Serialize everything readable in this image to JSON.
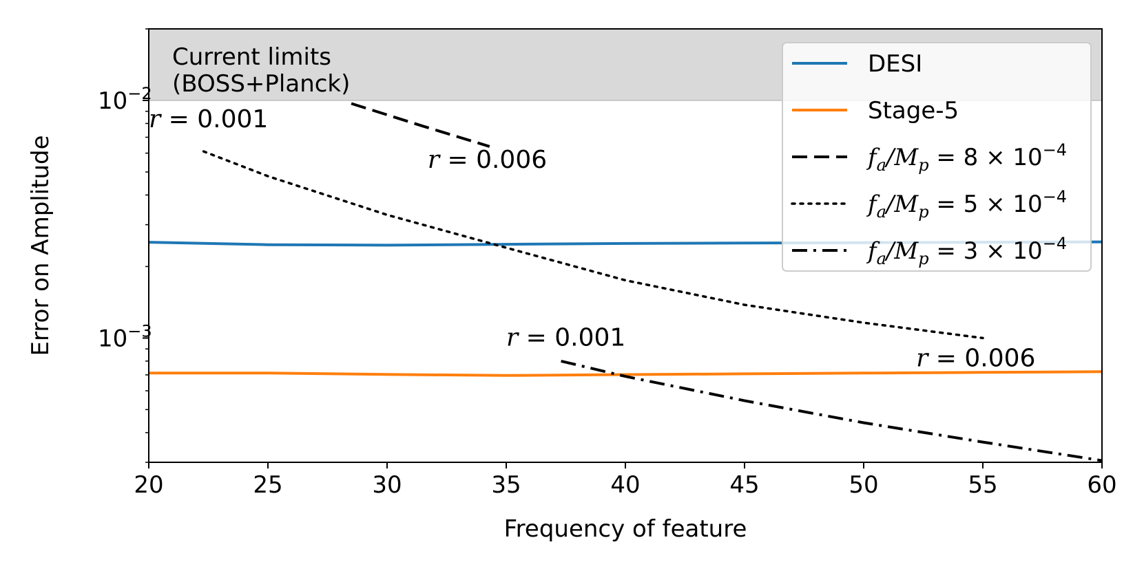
{
  "chart_data": {
    "type": "line",
    "xlabel": "Frequency of feature",
    "ylabel": "Error on Amplitude",
    "xlim": [
      20,
      60
    ],
    "ylim": [
      0.0003,
      0.02
    ],
    "yscale": "log",
    "xticks": [
      20,
      25,
      30,
      35,
      40,
      45,
      50,
      55,
      60
    ],
    "xtick_labels": [
      "20",
      "25",
      "30",
      "35",
      "40",
      "45",
      "50",
      "55",
      "60"
    ],
    "yticks_major": [
      {
        "value": 0.01,
        "base": "10",
        "exp": "−2"
      },
      {
        "value": 0.001,
        "base": "10",
        "exp": "−3"
      }
    ],
    "yticks_minor": [
      0.0003,
      0.0004,
      0.0005,
      0.0006,
      0.0007,
      0.0008,
      0.0009,
      0.002,
      0.003,
      0.004,
      0.005,
      0.006,
      0.007,
      0.008,
      0.009,
      0.02
    ],
    "shaded_region": {
      "y_from": 0.01,
      "y_to": 0.02,
      "color": "#d9d9d9",
      "label_line1": "Current limits",
      "label_line2": "(BOSS+Planck)"
    },
    "series": [
      {
        "name": "DESI",
        "color": "#1f77b4",
        "style": "solid",
        "x": [
          20,
          25,
          30,
          35,
          40,
          45,
          50,
          55,
          60
        ],
        "y": [
          0.00253,
          0.00247,
          0.00246,
          0.00248,
          0.0025,
          0.00251,
          0.00252,
          0.00253,
          0.00254
        ]
      },
      {
        "name": "Stage-5",
        "color": "#ff7f0e",
        "style": "solid",
        "x": [
          20,
          25,
          30,
          35,
          40,
          45,
          50,
          55,
          60
        ],
        "y": [
          0.000712,
          0.000712,
          0.000703,
          0.000696,
          0.000702,
          0.000707,
          0.000712,
          0.000717,
          0.000722
        ]
      },
      {
        "name": "f_a/M_p = 8 × 10^−4",
        "color": "#000000",
        "style": "dashed",
        "x": [
          28.5,
          31.5,
          34.3
        ],
        "y": [
          0.0097,
          0.0078,
          0.0064
        ]
      },
      {
        "name": "f_a/M_p = 5 × 10^−4",
        "color": "#000000",
        "style": "dotted",
        "x": [
          22.3,
          25,
          30,
          35,
          40,
          45,
          50,
          55
        ],
        "y": [
          0.0061,
          0.0048,
          0.0033,
          0.0024,
          0.00175,
          0.00138,
          0.00116,
          0.001
        ]
      },
      {
        "name": "f_a/M_p = 3 × 10^−4",
        "color": "#000000",
        "style": "dashdot",
        "x": [
          37.3,
          40,
          45,
          50,
          55,
          60
        ],
        "y": [
          0.0008,
          0.00069,
          0.000545,
          0.00044,
          0.000365,
          0.000305
        ]
      }
    ],
    "legend": {
      "position": "top-right",
      "entries": [
        {
          "label": "DESI"
        },
        {
          "label": "Stage-5"
        },
        {
          "prefix_a": "f",
          "sub_a": "a",
          "slash": "/",
          "prefix_b": "M",
          "sub_b": "p",
          "rest": " = 8 × 10",
          "exp": "−4"
        },
        {
          "prefix_a": "f",
          "sub_a": "a",
          "slash": "/",
          "prefix_b": "M",
          "sub_b": "p",
          "rest": " = 5 × 10",
          "exp": "−4"
        },
        {
          "prefix_a": "f",
          "sub_a": "a",
          "slash": "/",
          "prefix_b": "M",
          "sub_b": "p",
          "rest": " = 3 × 10",
          "exp": "−4"
        }
      ]
    },
    "annotations": [
      {
        "var": "r",
        "text": " = 0.001",
        "x": 20,
        "y": 0.0077
      },
      {
        "var": "r",
        "text": " = 0.006",
        "x": 31.7,
        "y": 0.0052
      },
      {
        "var": "r",
        "text": " = 0.001",
        "x": 35,
        "y": 0.00093
      },
      {
        "var": "r",
        "text": " = 0.006",
        "x": 52.2,
        "y": 0.00076
      }
    ]
  }
}
